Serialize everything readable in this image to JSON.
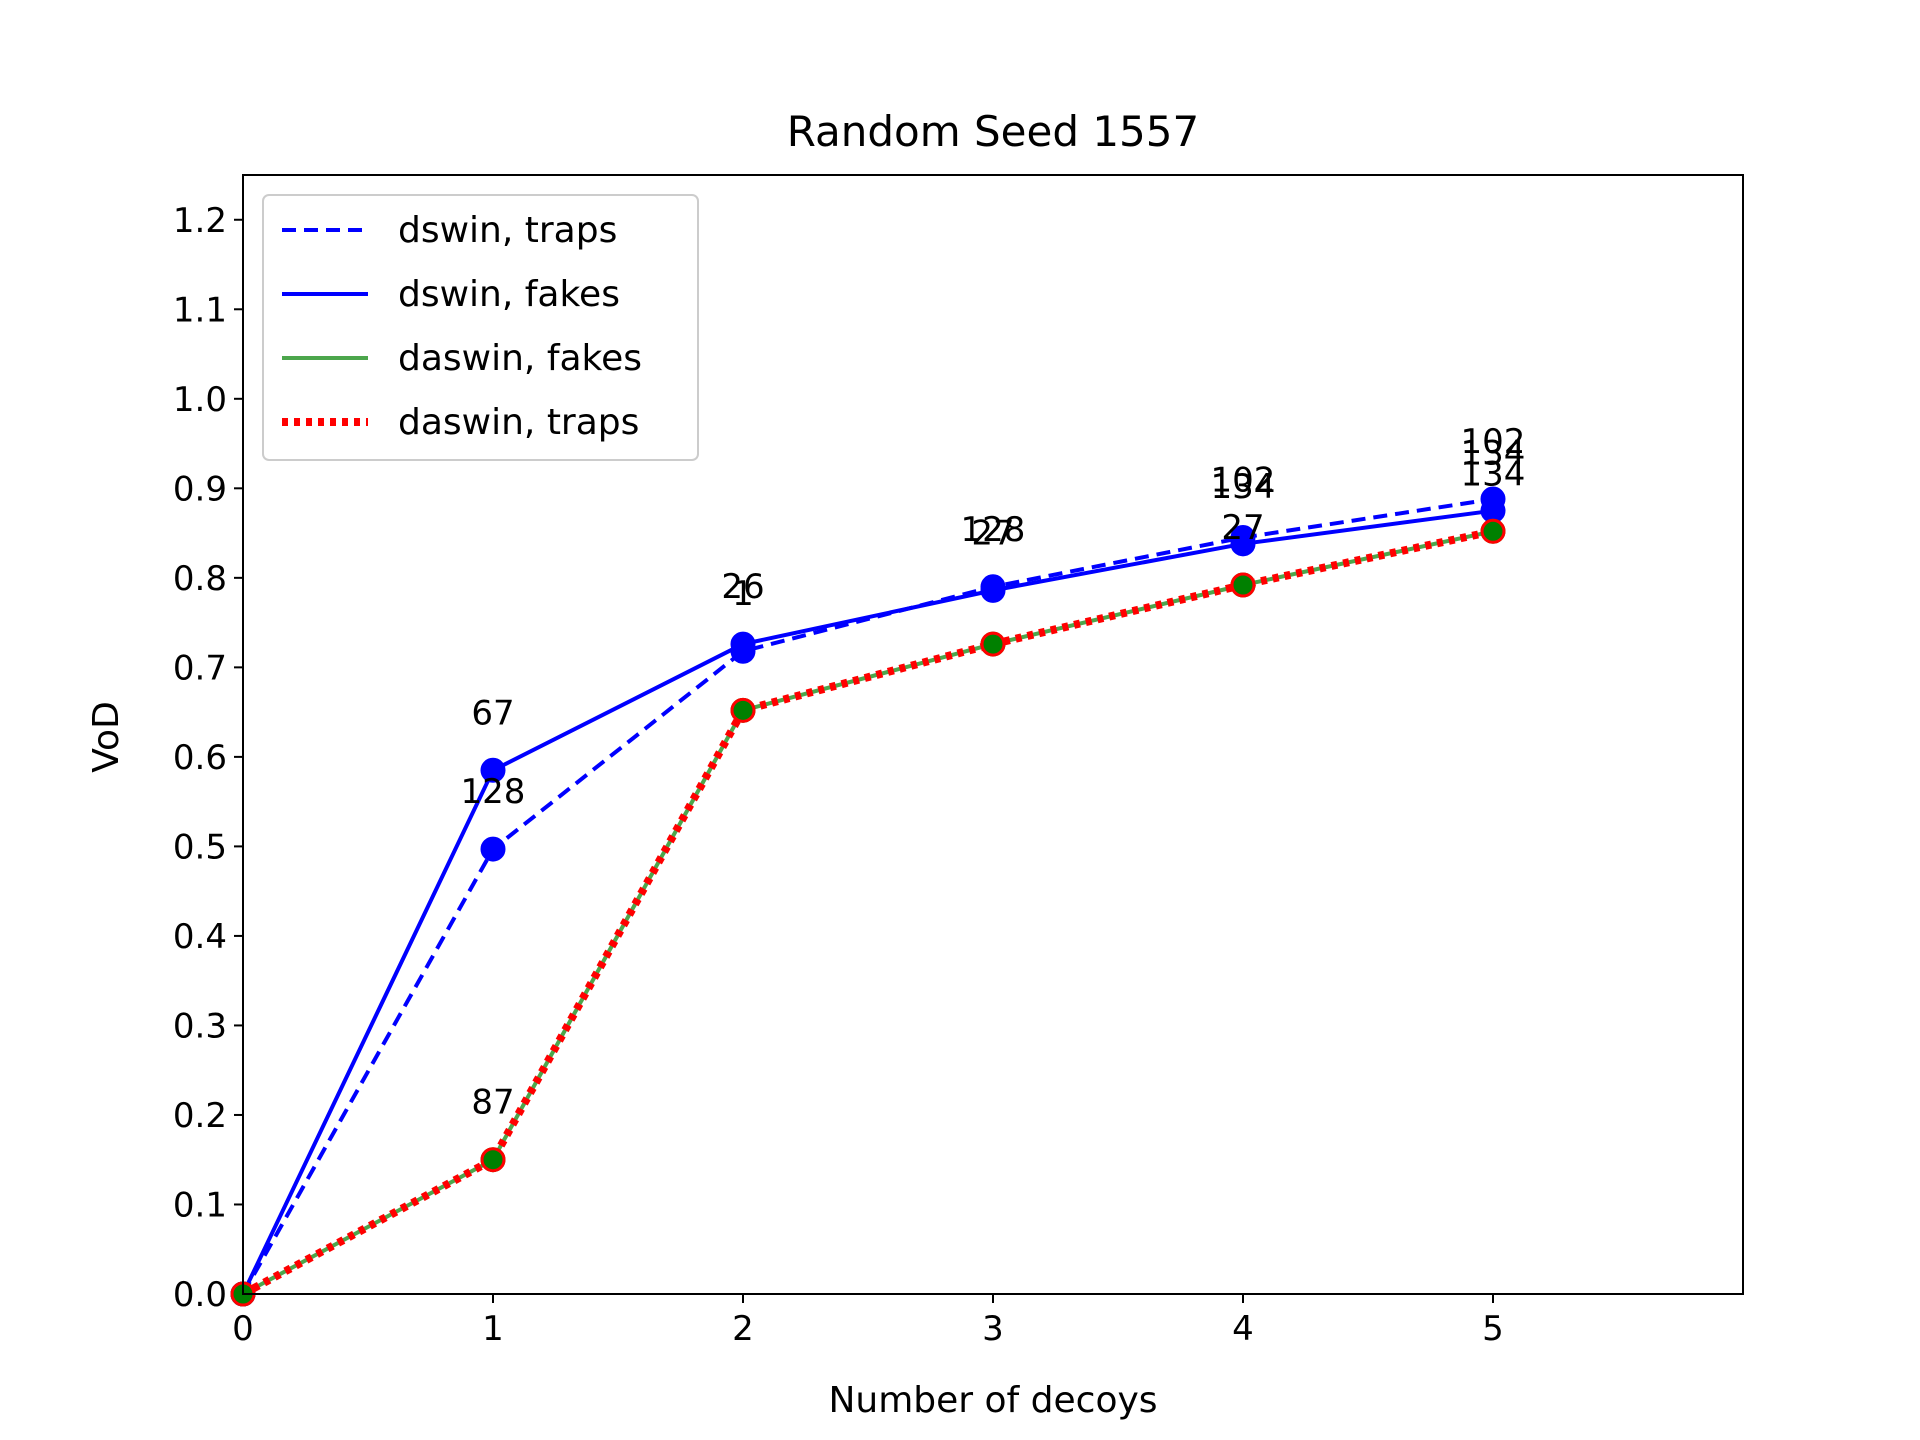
{
  "chart_data": {
    "type": "line",
    "title": "Random Seed 1557",
    "xlabel": "Number of decoys",
    "ylabel": "VoD",
    "xlim": [
      0,
      6
    ],
    "ylim": [
      0,
      1.25
    ],
    "x_ticks": [
      "0",
      "1",
      "2",
      "3",
      "4",
      "5"
    ],
    "y_ticks": [
      "0.0",
      "0.1",
      "0.2",
      "0.3",
      "0.4",
      "0.5",
      "0.6",
      "0.7",
      "0.8",
      "0.9",
      "1.0",
      "1.1",
      "1.2"
    ],
    "grid": false,
    "legend_position": "upper-left",
    "series": [
      {
        "name": "dswin, traps",
        "color": "#0000ff",
        "line_style": "dashed",
        "marker_fill": "#0000ff",
        "marker_edge": "#0000ff",
        "x": [
          0,
          1,
          2,
          3,
          4,
          5
        ],
        "y": [
          0.0,
          0.497,
          0.718,
          0.79,
          0.845,
          0.888
        ],
        "point_labels": [
          "",
          "128",
          "1",
          "128",
          "102",
          "102"
        ]
      },
      {
        "name": "dswin, fakes",
        "color": "#0000ff",
        "line_style": "solid",
        "marker_fill": "#0000ff",
        "marker_edge": "#0000ff",
        "x": [
          0,
          1,
          2,
          3,
          4,
          5
        ],
        "y": [
          0.0,
          0.585,
          0.726,
          0.786,
          0.838,
          0.875
        ],
        "point_labels": [
          "",
          "67",
          "26",
          "27",
          "134",
          "134"
        ]
      },
      {
        "name": "daswin, fakes",
        "color": "#4ca64c",
        "line_style": "solid",
        "marker_fill": "#008000",
        "marker_edge": "#008000",
        "x": [
          0,
          1,
          2,
          3,
          4,
          5
        ],
        "y": [
          0.0,
          0.15,
          0.652,
          0.726,
          0.792,
          0.852
        ],
        "point_labels": [
          "",
          "87",
          "",
          "",
          "27",
          "134"
        ]
      },
      {
        "name": "daswin, traps",
        "color": "#ff0000",
        "line_style": "dotted",
        "marker_fill": "#008000",
        "marker_edge": "#ff0000",
        "x": [
          0,
          1,
          2,
          3,
          4,
          5
        ],
        "y": [
          0.0,
          0.15,
          0.652,
          0.726,
          0.792,
          0.852
        ],
        "point_labels": [
          "",
          "",
          "",
          "",
          "",
          ""
        ]
      }
    ]
  }
}
